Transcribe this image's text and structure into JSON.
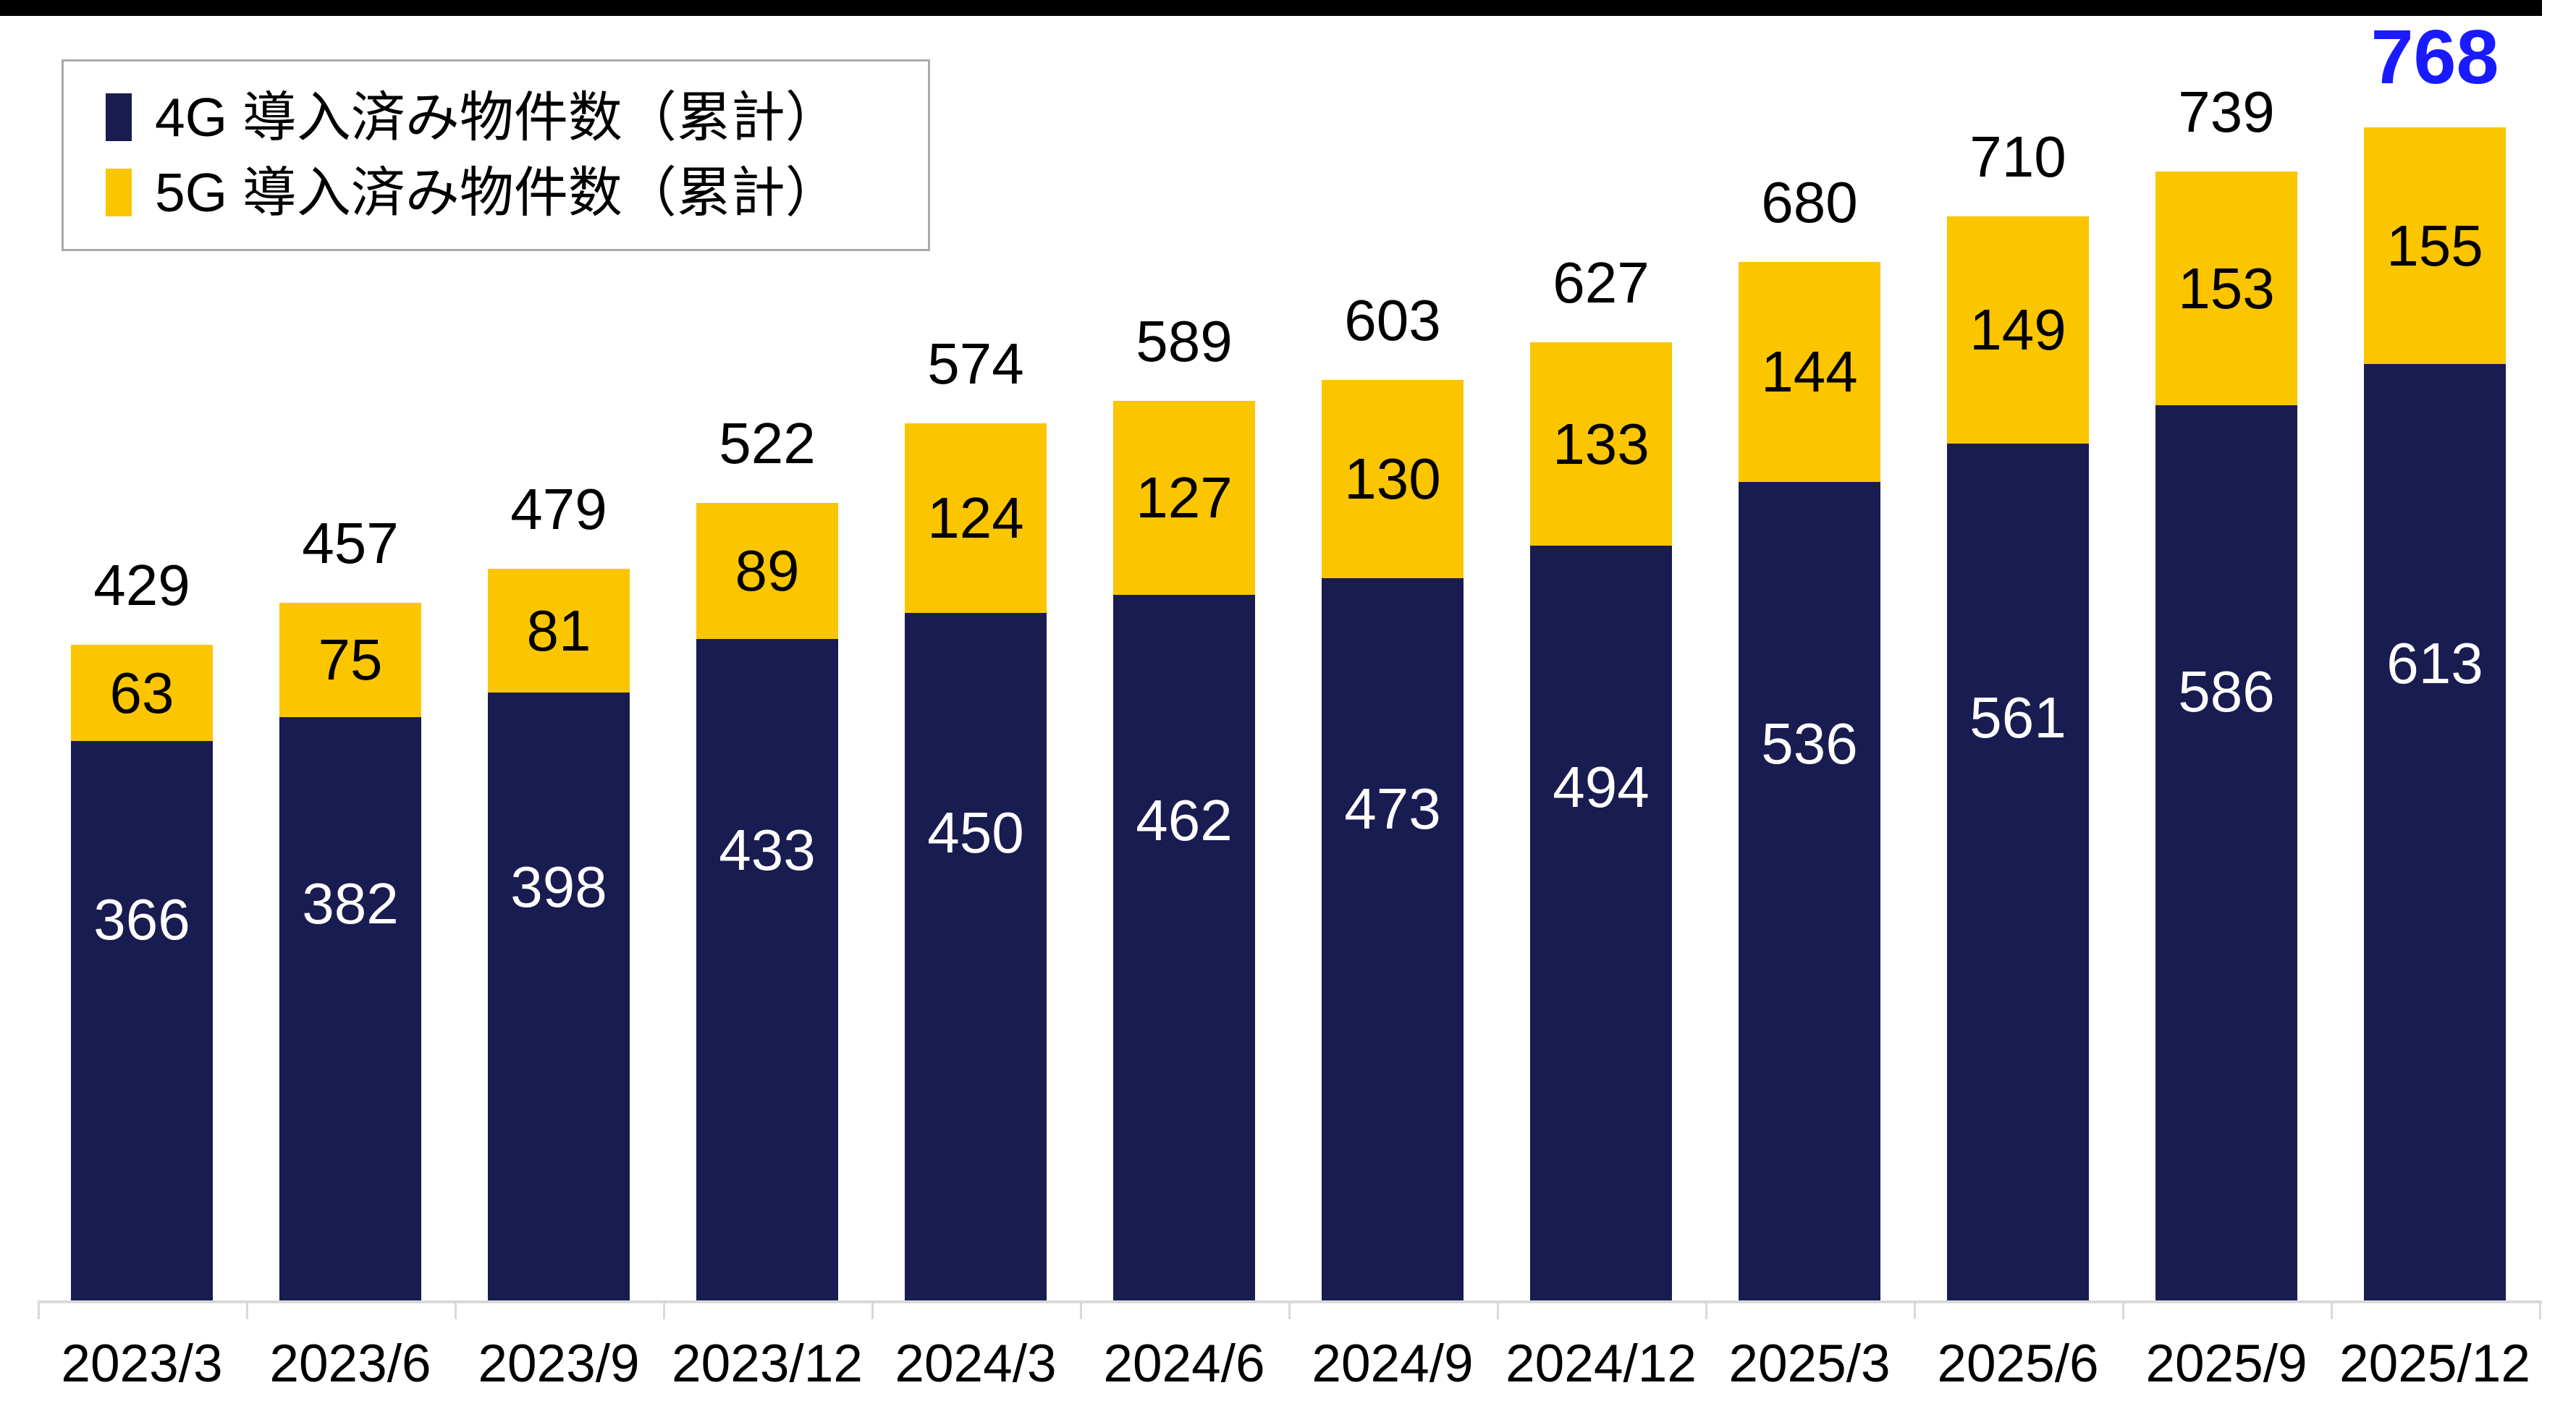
{
  "page": {
    "top_strip_color": "#000000"
  },
  "legend": {
    "items": [
      {
        "label": "4G 導入済み物件数（累計）",
        "color": "#191C51"
      },
      {
        "label": "5G 導入済み物件数（累計）",
        "color": "#FBC500"
      }
    ]
  },
  "chart_data": {
    "type": "bar",
    "stacked": true,
    "title": "",
    "xlabel": "",
    "ylabel": "",
    "categories": [
      "2023/3",
      "2023/6",
      "2023/9",
      "2023/12",
      "2024/3",
      "2024/6",
      "2024/9",
      "2024/12",
      "2025/3",
      "2025/6",
      "2025/9",
      "2025/12"
    ],
    "series": [
      {
        "name": "4G 導入済み物件数（累計）",
        "color": "#191C51",
        "label_color": "#FFFFFF",
        "values": [
          366,
          382,
          398,
          433,
          450,
          462,
          473,
          494,
          536,
          561,
          586,
          613
        ]
      },
      {
        "name": "5G 導入済み物件数（累計）",
        "color": "#FBC500",
        "label_color": "#000000",
        "values": [
          63,
          75,
          81,
          89,
          124,
          127,
          130,
          133,
          144,
          149,
          153,
          155
        ]
      }
    ],
    "totals": [
      429,
      457,
      479,
      522,
      574,
      589,
      603,
      627,
      680,
      710,
      739,
      768
    ],
    "total_highlight": {
      "index": 11,
      "color": "#1A1AFF",
      "bold": true
    },
    "ylim": [
      0,
      815
    ],
    "grid": false,
    "legend_position": "top-left",
    "axis_color": "#D9D9D9"
  }
}
